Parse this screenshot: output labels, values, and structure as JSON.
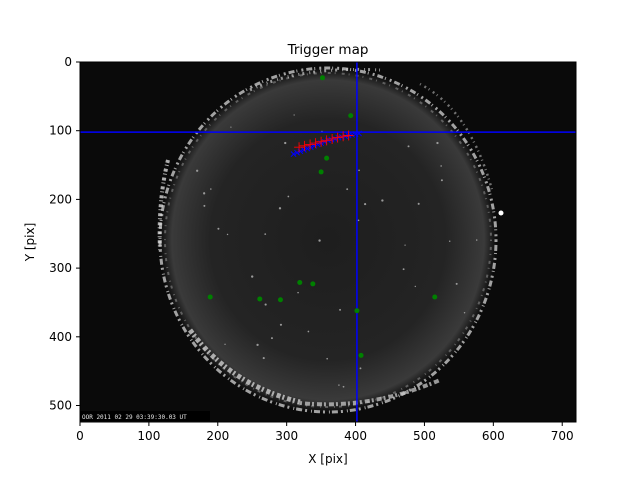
{
  "chart_data": {
    "type": "scatter",
    "title": "Trigger map",
    "xlabel": "X [pix]",
    "ylabel": "Y [pix]",
    "xlim": [
      0,
      720
    ],
    "ylim": [
      524,
      0
    ],
    "xticks": [
      0,
      100,
      200,
      300,
      400,
      500,
      600,
      700
    ],
    "yticks": [
      0,
      100,
      200,
      300,
      400,
      500
    ],
    "xtick_labels": [
      "0",
      "100",
      "200",
      "300",
      "400",
      "500",
      "600",
      "700"
    ],
    "ytick_labels": [
      "0",
      "100",
      "200",
      "300",
      "400",
      "500"
    ],
    "background": "all-sky camera frame (fisheye circle)",
    "timestamp_overlay": "OOR 2011 02 29 03:39:30.03 UT",
    "crosshair": {
      "x": 402,
      "y": 102,
      "color": "#0000ff"
    },
    "series": [
      {
        "name": "green markers",
        "marker": "dot",
        "color": "#008000",
        "points": [
          [
            352,
            23
          ],
          [
            393,
            78
          ],
          [
            358,
            140
          ],
          [
            350,
            160
          ],
          [
            189,
            342
          ],
          [
            261,
            345
          ],
          [
            291,
            346
          ],
          [
            319,
            321
          ],
          [
            338,
            323
          ],
          [
            402,
            362
          ],
          [
            408,
            427
          ],
          [
            515,
            342
          ]
        ]
      },
      {
        "name": "blue track",
        "marker": "x",
        "color": "#0000ff",
        "points": [
          [
            310,
            134
          ],
          [
            315,
            132
          ],
          [
            320,
            130
          ],
          [
            325,
            128
          ],
          [
            330,
            126
          ],
          [
            335,
            124
          ],
          [
            340,
            122
          ],
          [
            345,
            120
          ],
          [
            350,
            118
          ],
          [
            355,
            116
          ],
          [
            360,
            114
          ],
          [
            365,
            113
          ],
          [
            370,
            112
          ],
          [
            375,
            110
          ],
          [
            380,
            109
          ],
          [
            385,
            108
          ],
          [
            390,
            107
          ],
          [
            395,
            106
          ],
          [
            400,
            105
          ],
          [
            405,
            104
          ]
        ]
      },
      {
        "name": "red fit",
        "marker": "plus",
        "color": "#ff0000",
        "points": [
          [
            318,
            124
          ],
          [
            326,
            122
          ],
          [
            334,
            120
          ],
          [
            342,
            118
          ],
          [
            350,
            116
          ],
          [
            358,
            114
          ],
          [
            366,
            112
          ],
          [
            374,
            110
          ],
          [
            382,
            108
          ],
          [
            390,
            107
          ]
        ]
      }
    ]
  }
}
